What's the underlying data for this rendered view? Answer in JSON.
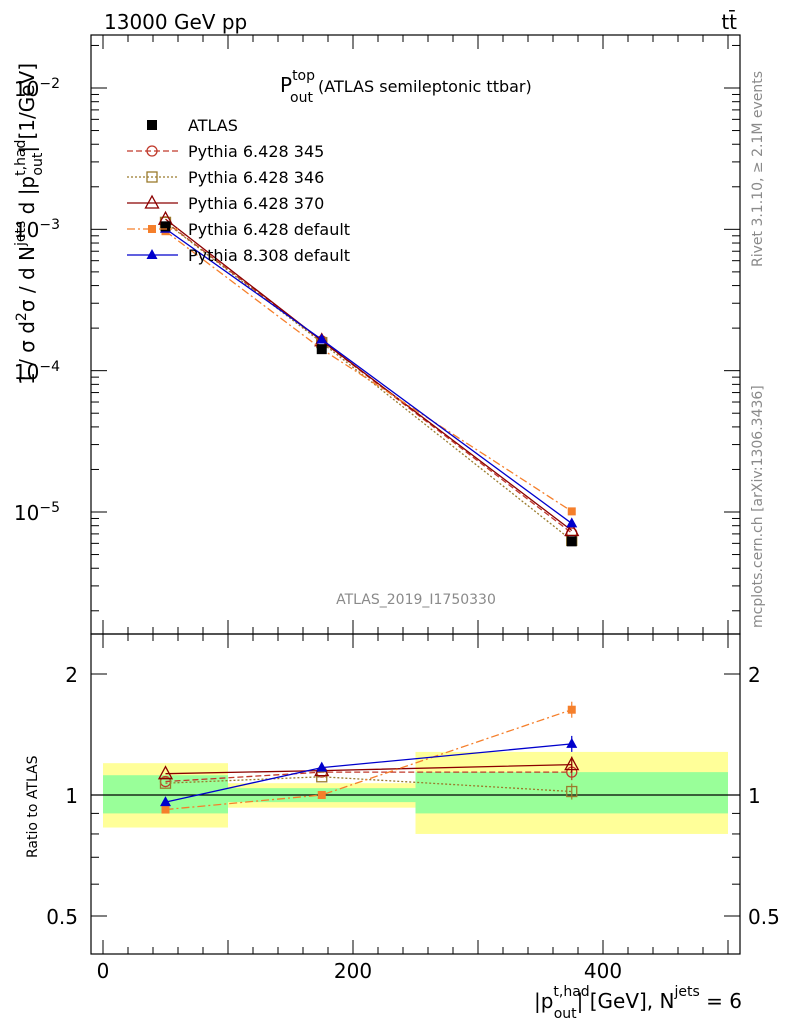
{
  "header": {
    "left": "13000 GeV pp",
    "right": "tt̄"
  },
  "side": {
    "rivet": "Rivet 3.1.10, ≥ 2.1M events",
    "mcplots": "mcplots.cern.ch [arXiv:1306.3436]"
  },
  "watermark": "ATLAS_2019_I1750330",
  "colors": {
    "atlas": "#000000",
    "p345": "#c0392b",
    "p346": "#9a7b2c",
    "p370": "#8b0000",
    "p6def": "#f57f2b",
    "p8def": "#0000cc",
    "band_inner": "#99ff99",
    "band_outer": "#ffff99"
  },
  "chart_data": [
    {
      "type": "line",
      "title": "P_out^top (ATLAS semileptonic ttbar)",
      "ylabel": "1 / σ d²σ / d N^jets d |p_out^t,had| [1/GeV]",
      "yscale": "log",
      "ylim": [
        1.5e-06,
        0.025
      ],
      "xlim": [
        -15,
        510
      ],
      "y_ticks": [
        "10^-2",
        "10^-3",
        "10^-4",
        "10^-5"
      ],
      "x_bins": [
        [
          0,
          100
        ],
        [
          100,
          250
        ],
        [
          250,
          500
        ]
      ],
      "x": [
        50,
        175,
        375
      ],
      "legend_position": "top-left",
      "series": [
        {
          "name": "ATLAS",
          "values": [
            0.00105,
            0.000142,
            6.2e-06
          ],
          "marker": "filled-square",
          "style": "none"
        },
        {
          "name": "Pythia 6.428 345",
          "values": [
            0.00113,
            0.000162,
            7.1e-06
          ],
          "marker": "open-circle",
          "style": "dashed"
        },
        {
          "name": "Pythia 6.428 346",
          "values": [
            0.00112,
            0.000158,
            6.3e-06
          ],
          "marker": "open-square",
          "style": "dotted"
        },
        {
          "name": "Pythia 6.428 370",
          "values": [
            0.00118,
            0.000163,
            7.4e-06
          ],
          "marker": "open-triangle",
          "style": "solid"
        },
        {
          "name": "Pythia 6.428 default",
          "values": [
            0.00097,
            0.000142,
            1.01e-05
          ],
          "marker": "filled-square-small",
          "style": "dashdot"
        },
        {
          "name": "Pythia 8.308 default",
          "values": [
            0.00101,
            0.000166,
            8.3e-06
          ],
          "marker": "filled-triangle",
          "style": "solid"
        }
      ]
    },
    {
      "type": "line",
      "ylabel": "Ratio to ATLAS",
      "xlabel": "|p_out^t,had| [GeV], N^jets = 6",
      "yscale": "log",
      "ylim": [
        0.41,
        2.4
      ],
      "xlim": [
        -15,
        510
      ],
      "y_ticks": [
        "2",
        "1",
        "0.5"
      ],
      "x_ticks": [
        "0",
        "200",
        "400"
      ],
      "x": [
        50,
        175,
        375
      ],
      "band_bins": [
        [
          0,
          100
        ],
        [
          100,
          250
        ],
        [
          250,
          500
        ]
      ],
      "band_inner": [
        [
          0.9,
          1.12
        ],
        [
          0.96,
          1.04
        ],
        [
          0.9,
          1.14
        ]
      ],
      "band_outer": [
        [
          0.83,
          1.2
        ],
        [
          0.93,
          1.07
        ],
        [
          0.8,
          1.28
        ]
      ],
      "series": [
        {
          "name": "Pythia 6.428 345",
          "values": [
            1.08,
            1.14,
            1.14
          ]
        },
        {
          "name": "Pythia 6.428 346",
          "values": [
            1.07,
            1.11,
            1.02
          ]
        },
        {
          "name": "Pythia 6.428 370",
          "values": [
            1.13,
            1.15,
            1.19
          ]
        },
        {
          "name": "Pythia 6.428 default",
          "values": [
            0.92,
            1.0,
            1.63
          ]
        },
        {
          "name": "Pythia 8.308 default",
          "values": [
            0.96,
            1.17,
            1.34
          ]
        }
      ]
    }
  ]
}
